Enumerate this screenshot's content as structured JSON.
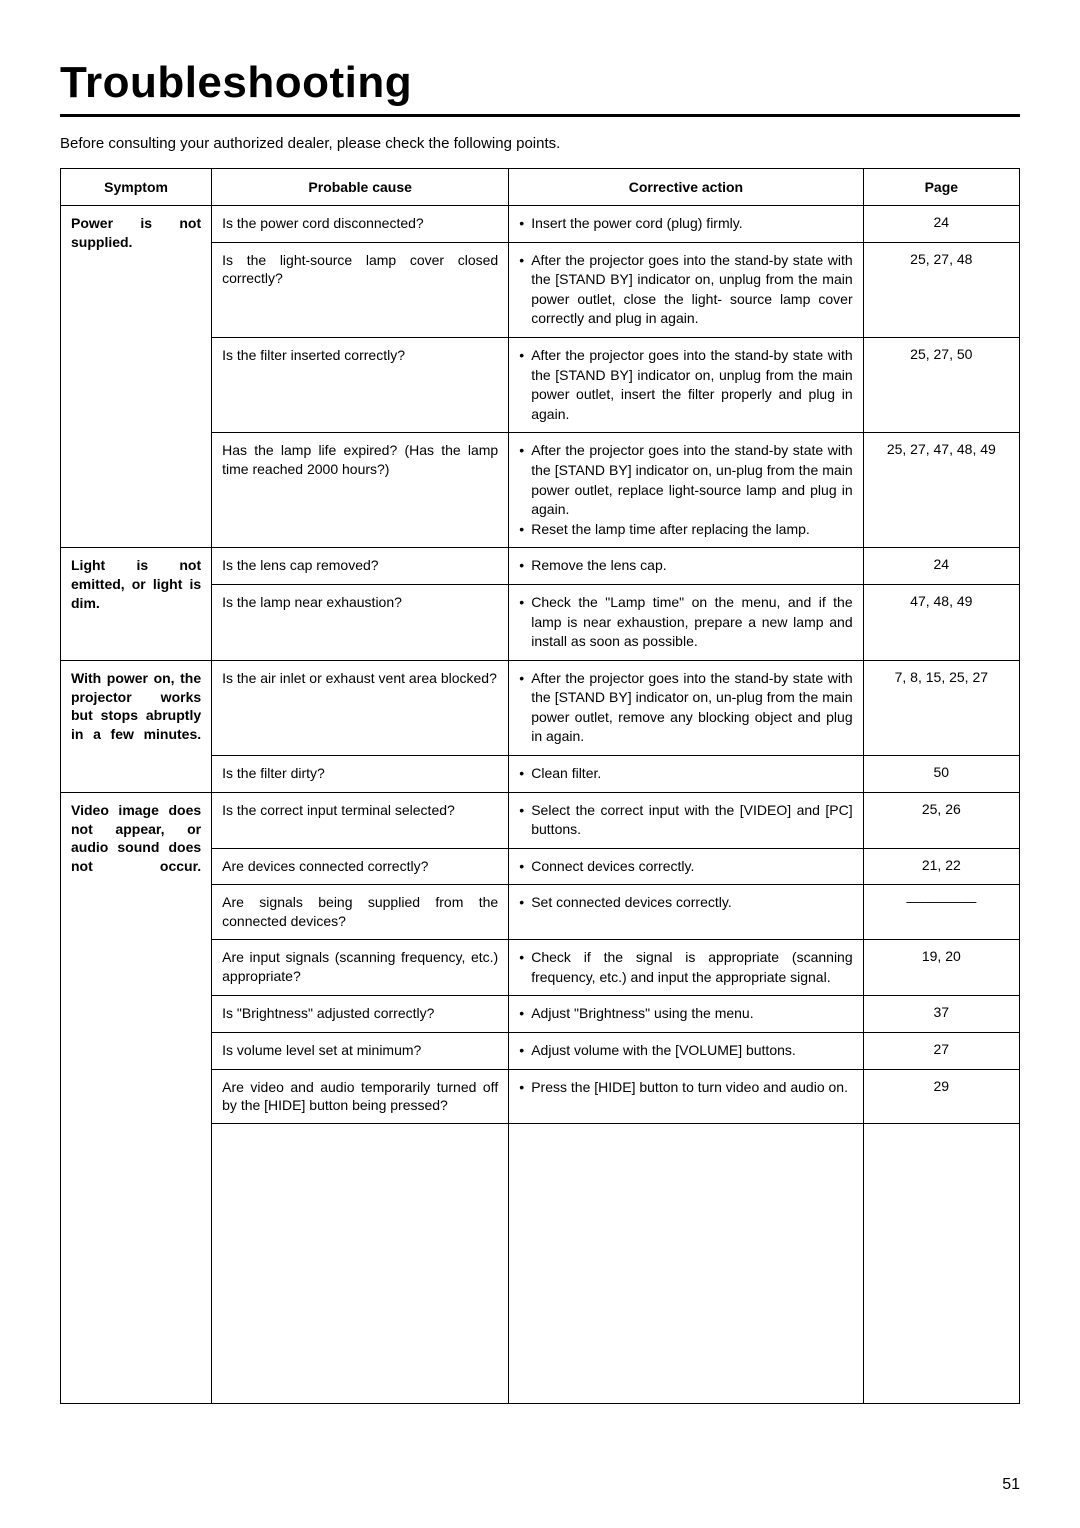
{
  "page": {
    "title": "Troubleshooting",
    "intro": "Before consulting your authorized dealer, please check the following points.",
    "page_number": "51"
  },
  "table": {
    "headers": {
      "symptom": "Symptom",
      "cause": "Probable cause",
      "action": "Corrective action",
      "page": "Page"
    },
    "groups": [
      {
        "symptom": "Power is not supplied.",
        "rows": [
          {
            "cause": "Is the power cord disconnected?",
            "action": "Insert the power cord (plug) firmly.",
            "page": "24"
          },
          {
            "cause": "Is the light-source lamp cover closed correctly?",
            "action": "After the projector goes into the stand-by state with the [STAND BY] indicator on, unplug from the main power outlet, close the light- source lamp cover correctly and plug in again.",
            "page": "25, 27, 48"
          },
          {
            "cause": "Is the filter inserted correctly?",
            "action": "After the projector goes into the stand-by state with the [STAND BY] indicator on, unplug from the main power outlet, insert the filter properly and plug in again.",
            "page": "25, 27, 50"
          },
          {
            "cause": "Has the lamp life expired? (Has the lamp time reached 2000 hours?)",
            "action": "After the projector goes into the stand-by state with the [STAND BY] indicator on, un-plug from the main power outlet, replace light-source lamp and plug in again.\nReset the lamp time after replacing the lamp.",
            "page": "25, 27, 47, 48, 49"
          }
        ]
      },
      {
        "symptom": "Light is not emitted, or light is dim.",
        "rows": [
          {
            "cause": "Is the lens cap removed?",
            "action": "Remove the lens cap.",
            "page": "24"
          },
          {
            "cause": "Is the lamp near exhaustion?",
            "action": "Check the \"Lamp time\" on the menu, and if the lamp is near exhaustion, prepare a new lamp and install as soon as possible.",
            "page": "47, 48, 49"
          }
        ]
      },
      {
        "symptom": "With power on, the projector works but stops abruptly in a few minutes.",
        "rows": [
          {
            "cause": "Is the air inlet or exhaust vent area blocked?",
            "action": "After the projector goes into the stand-by state with the [STAND BY] indicator on, un-plug from the main power outlet, remove any blocking object and plug in again.",
            "page": "7, 8, 15, 25, 27"
          },
          {
            "cause": "Is the filter dirty?",
            "action": "Clean filter.",
            "page": "50"
          }
        ]
      },
      {
        "symptom": "Video image does not appear, or audio sound does not occur.",
        "rows": [
          {
            "cause": "Is the correct input terminal selected?",
            "action": "Select the correct input with the [VIDEO] and [PC] buttons.",
            "page": "25, 26"
          },
          {
            "cause": "Are devices connected correctly?",
            "action": "Connect devices correctly.",
            "page": "21, 22"
          },
          {
            "cause": "Are signals being supplied from the connected devices?",
            "action": "Set connected devices correctly.",
            "page": "—————"
          },
          {
            "cause": "Are input signals (scanning frequency, etc.) appropriate?",
            "action": "Check if the signal is appropriate (scanning frequency, etc.) and input the appropriate signal.",
            "page": "19, 20"
          },
          {
            "cause": "Is \"Brightness\" adjusted correctly?",
            "action": "Adjust \"Brightness\" using the menu.",
            "page": "37"
          },
          {
            "cause": "Is volume level set at minimum?",
            "action": "Adjust volume with the [VOLUME] buttons.",
            "page": "27"
          },
          {
            "cause": "Are video and audio temporarily turned off by the [HIDE] button being pressed?",
            "action": "Press the [HIDE] button to turn video and audio on.",
            "page": "29"
          }
        ]
      }
    ]
  }
}
